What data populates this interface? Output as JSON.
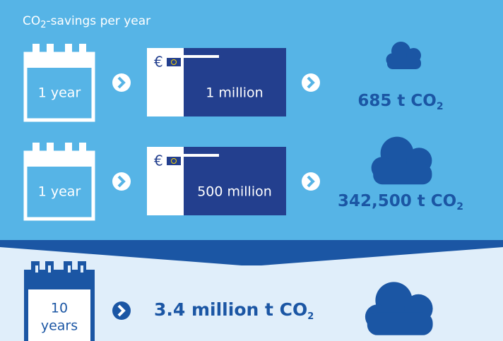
{
  "header": {
    "title": {
      "text": "CO",
      "sub": "2",
      "rest": "-savings per year"
    }
  },
  "rows": [
    {
      "period": "1 year",
      "currency": "€",
      "amount": "1 million",
      "result": {
        "text": "685 t CO",
        "sub": "2"
      }
    },
    {
      "period": "1 year",
      "currency": "€",
      "amount": "500 million",
      "result": {
        "text": "342,500 t CO",
        "sub": "2"
      }
    }
  ],
  "total": {
    "period_number": "10",
    "period_unit": "years",
    "result": {
      "text": "3.4 million t CO",
      "sub": "2"
    }
  }
}
